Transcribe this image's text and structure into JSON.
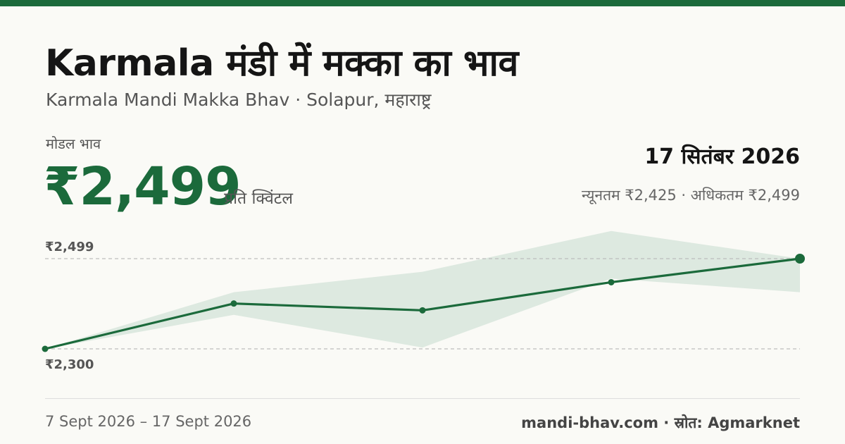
{
  "header": {
    "title": "Karmala मंडी में मक्का का भाव",
    "subtitle": "Karmala Mandi Makka Bhav · Solapur, महाराष्ट्र"
  },
  "price": {
    "label": "मोडल भाव",
    "value": "₹2,499",
    "unit": "प्रति क्विंटल"
  },
  "summary": {
    "date": "17 सितंबर 2026",
    "range": "न्यूनतम ₹2,425 · अधिकतम ₹2,499"
  },
  "footer": {
    "date_range": "7 Sept 2026 – 17 Sept 2026",
    "source": "mandi-bhav.com · स्रोत: Agmarknet"
  },
  "colors": {
    "accent": "#1b6a3b",
    "band": "#dde9e0",
    "background": "#fafaf6"
  },
  "chart_data": {
    "type": "line",
    "title": "",
    "xlabel": "",
    "ylabel": "",
    "x": [
      "7 Sept 2026",
      "",
      "",
      "",
      "17 Sept 2026"
    ],
    "series": [
      {
        "values": [
          2300,
          2400,
          2385,
          2447,
          2499
        ]
      }
    ],
    "band": {
      "low": [
        2300,
        2375,
        2303,
        2455,
        2425
      ],
      "high": [
        2300,
        2425,
        2470,
        2560,
        2499
      ]
    },
    "reference_lines": [
      {
        "value": 2499,
        "label": "₹2,499"
      },
      {
        "value": 2300,
        "label": "₹2,300"
      }
    ],
    "ylim": [
      2300,
      2499
    ],
    "grid": false,
    "legend": "none"
  }
}
